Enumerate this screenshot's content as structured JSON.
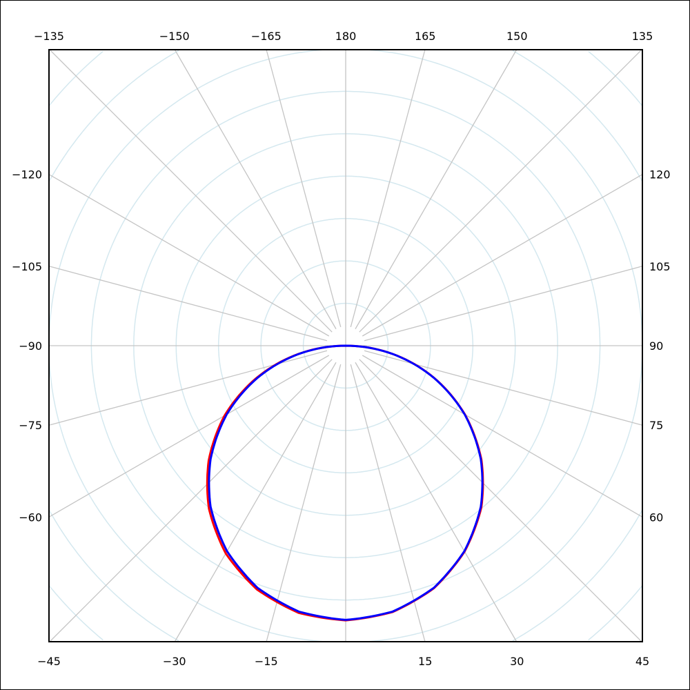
{
  "chart_data": {
    "type": "polar-line",
    "title": "",
    "angle_zero": "bottom",
    "angle_direction": "positive-to-right",
    "radial_grid_rings": 9,
    "radial_grid_visible_to_edge": 7,
    "angular_grid_step": 15,
    "grid": true,
    "colors": {
      "grid_ring": "#d4e8ef",
      "grid_spoke": "#c4c4c4",
      "frame": "#000000"
    },
    "tick_labels": [
      {
        "angle": -135,
        "text": "−135",
        "side": "top"
      },
      {
        "angle": -150,
        "text": "−150",
        "side": "top"
      },
      {
        "angle": -165,
        "text": "−165",
        "side": "top"
      },
      {
        "angle": 180,
        "text": "180",
        "side": "top"
      },
      {
        "angle": 165,
        "text": "165",
        "side": "top"
      },
      {
        "angle": 150,
        "text": "150",
        "side": "top"
      },
      {
        "angle": 135,
        "text": "135",
        "side": "top"
      },
      {
        "angle": -120,
        "text": "−120",
        "side": "left"
      },
      {
        "angle": -105,
        "text": "−105",
        "side": "left"
      },
      {
        "angle": -90,
        "text": "−90",
        "side": "left"
      },
      {
        "angle": -75,
        "text": "−75",
        "side": "left"
      },
      {
        "angle": -60,
        "text": "−60",
        "side": "left"
      },
      {
        "angle": 120,
        "text": "120",
        "side": "right"
      },
      {
        "angle": 105,
        "text": "105",
        "side": "right"
      },
      {
        "angle": 90,
        "text": "90",
        "side": "right"
      },
      {
        "angle": 75,
        "text": "75",
        "side": "right"
      },
      {
        "angle": 60,
        "text": "60",
        "side": "right"
      },
      {
        "angle": -45,
        "text": "−45",
        "side": "bottom"
      },
      {
        "angle": -30,
        "text": "−30",
        "side": "bottom"
      },
      {
        "angle": -15,
        "text": "−15",
        "side": "bottom"
      },
      {
        "angle": 15,
        "text": "15",
        "side": "bottom"
      },
      {
        "angle": 30,
        "text": "30",
        "side": "bottom"
      },
      {
        "angle": 45,
        "text": "45",
        "side": "bottom"
      }
    ],
    "series": [
      {
        "color": "#ff0000",
        "angles": [
          -90,
          -80,
          -70,
          -60,
          -50,
          -40,
          -30,
          -20,
          -10,
          0,
          10,
          20,
          30,
          40,
          50,
          60,
          70,
          80,
          90
        ],
        "values": [
          0,
          1.14,
          2.25,
          3.3,
          4.22,
          5.02,
          5.66,
          6.12,
          6.4,
          6.48,
          6.38,
          6.09,
          5.61,
          4.98,
          4.18,
          3.25,
          2.22,
          1.13,
          0
        ]
      },
      {
        "color": "#0000ff",
        "angles": [
          -90,
          -80,
          -70,
          -60,
          -50,
          -40,
          -30,
          -20,
          -10,
          0,
          10,
          20,
          30,
          40,
          50,
          60,
          70,
          80,
          90
        ],
        "values": [
          0,
          1.12,
          2.21,
          3.24,
          4.16,
          4.96,
          5.6,
          6.08,
          6.37,
          6.47,
          6.37,
          6.08,
          5.6,
          4.96,
          4.16,
          3.24,
          2.21,
          1.12,
          0
        ]
      }
    ]
  }
}
